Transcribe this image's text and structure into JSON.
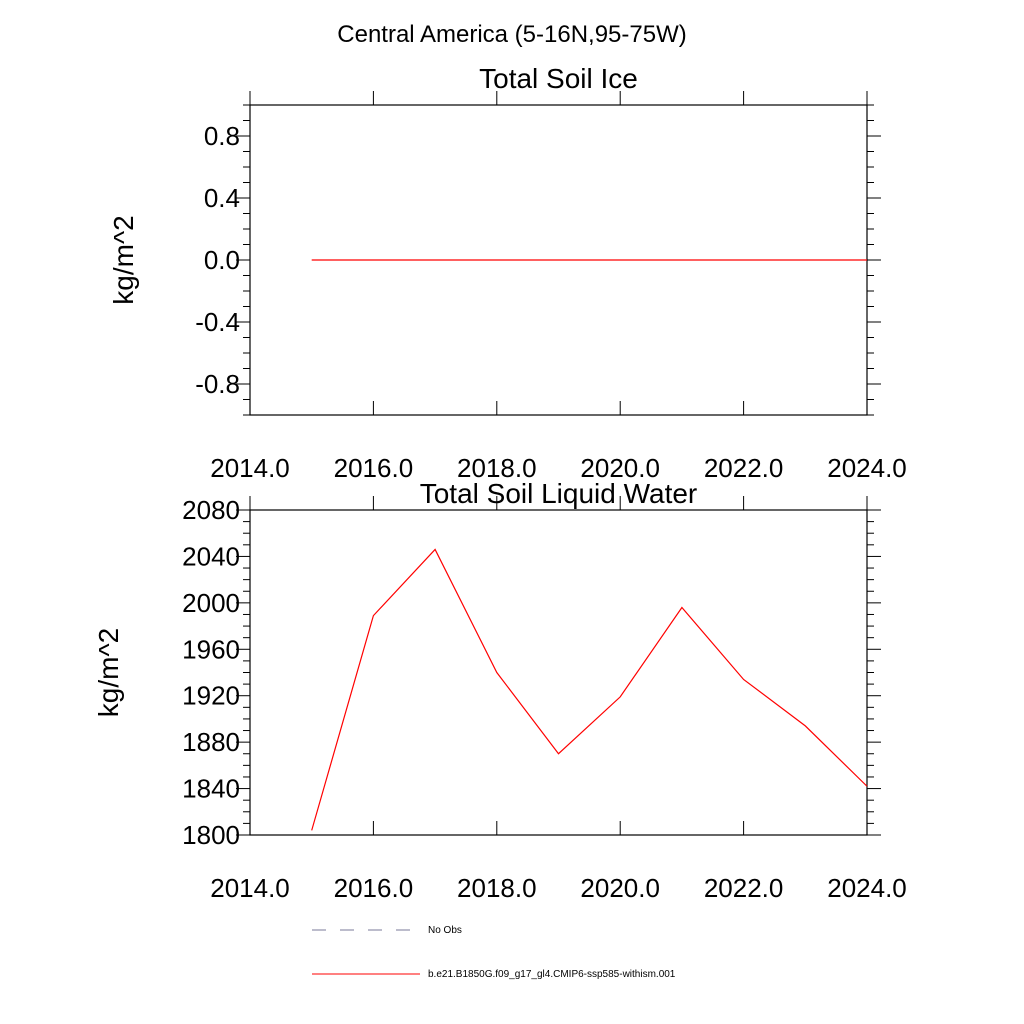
{
  "main_title": "Central America (5-16N,95-75W)",
  "chart_data": [
    {
      "type": "line",
      "title": "Total Soil Ice",
      "xlabel": "",
      "ylabel": "kg/m^2",
      "xlim": [
        2014,
        2024
      ],
      "ylim": [
        -1.0,
        1.0
      ],
      "x_ticks": [
        2014,
        2016,
        2018,
        2020,
        2022,
        2024
      ],
      "x_tick_labels": [
        "2014.0",
        "2016.0",
        "2018.0",
        "2020.0",
        "2022.0",
        "2024.0"
      ],
      "y_ticks": [
        -0.8,
        -0.4,
        0.0,
        0.4,
        0.8
      ],
      "y_tick_labels": [
        "-0.8",
        "-0.4",
        "0.0",
        "0.4",
        "0.8"
      ],
      "grid": false,
      "series": [
        {
          "name": "b.e21.B1850G.f09_g17_gl4.CMIP6-ssp585-withism.001",
          "color": "#ff0000",
          "x": [
            2015,
            2016,
            2017,
            2018,
            2019,
            2020,
            2021,
            2022,
            2023,
            2024
          ],
          "y": [
            0,
            0,
            0,
            0,
            0,
            0,
            0,
            0,
            0,
            0
          ]
        }
      ]
    },
    {
      "type": "line",
      "title": "Total Soil Liquid Water",
      "xlabel": "",
      "ylabel": "kg/m^2",
      "xlim": [
        2014,
        2024
      ],
      "ylim": [
        1800,
        2080
      ],
      "x_ticks": [
        2014,
        2016,
        2018,
        2020,
        2022,
        2024
      ],
      "x_tick_labels": [
        "2014.0",
        "2016.0",
        "2018.0",
        "2020.0",
        "2022.0",
        "2024.0"
      ],
      "y_ticks": [
        1800,
        1840,
        1880,
        1920,
        1960,
        2000,
        2040,
        2080
      ],
      "y_tick_labels": [
        "1800",
        "1840",
        "1880",
        "1920",
        "1960",
        "2000",
        "2040",
        "2080"
      ],
      "grid": false,
      "series": [
        {
          "name": "b.e21.B1850G.f09_g17_gl4.CMIP6-ssp585-withism.001",
          "color": "#ff0000",
          "x": [
            2015,
            2016,
            2017,
            2018,
            2019,
            2020,
            2021,
            2022,
            2023,
            2024
          ],
          "y": [
            1804,
            1989,
            2046,
            1940,
            1870,
            1919,
            1996,
            1934,
            1894,
            1842
          ]
        }
      ]
    }
  ],
  "legend": {
    "placement": "bottom",
    "items": [
      {
        "label": "No Obs",
        "color": "#7a7a9a",
        "style": "dashed"
      },
      {
        "label": "b.e21.B1850G.f09_g17_gl4.CMIP6-ssp585-withism.001",
        "color": "#ff0000",
        "style": "solid"
      }
    ]
  }
}
